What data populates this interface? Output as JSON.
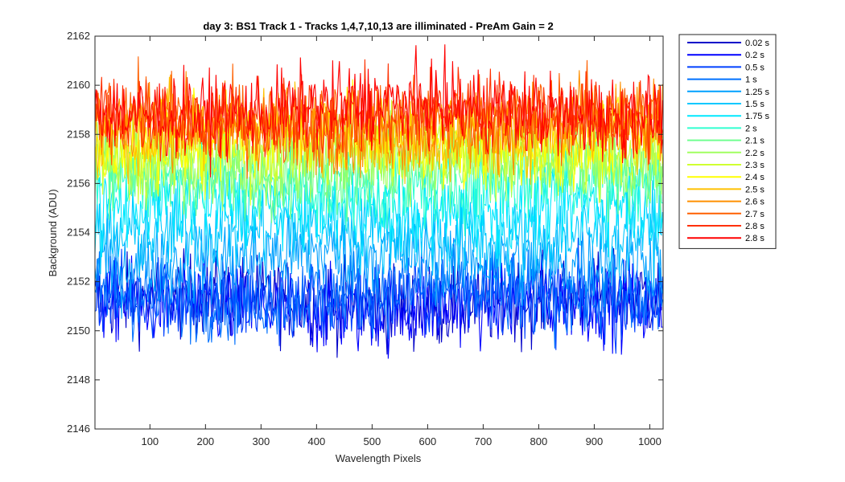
{
  "chart_data": {
    "type": "line",
    "title": "day 3: BS1  Track 1 - Tracks 1,4,7,10,13 are illiminated - PreAm Gain = 2",
    "xlabel": "Wavelength Pixels",
    "ylabel": "Background (ADU)",
    "xlim": [
      1,
      1024
    ],
    "ylim": [
      2146,
      2162
    ],
    "xticks": [
      100,
      200,
      300,
      400,
      500,
      600,
      700,
      800,
      900,
      1000
    ],
    "yticks": [
      2146,
      2148,
      2150,
      2152,
      2154,
      2156,
      2158,
      2160,
      2162
    ],
    "grid": false,
    "legend_position": "outside-right",
    "series": [
      {
        "name": "0.02 s",
        "color": "#0000c8",
        "mean": 2151.2
      },
      {
        "name": "0.2 s",
        "color": "#0000ff",
        "mean": 2151.0
      },
      {
        "name": "0.5 s",
        "color": "#0040ff",
        "mean": 2151.3
      },
      {
        "name": "1 s",
        "color": "#0070ff",
        "mean": 2151.5
      },
      {
        "name": "1.25 s",
        "color": "#00a0ff",
        "mean": 2153.0
      },
      {
        "name": "1.5 s",
        "color": "#00c8ff",
        "mean": 2154.0
      },
      {
        "name": "1.75 s",
        "color": "#00e8ff",
        "mean": 2155.0
      },
      {
        "name": "2 s",
        "color": "#30ffd0",
        "mean": 2156.0
      },
      {
        "name": "2.1 s",
        "color": "#70ff90",
        "mean": 2156.6
      },
      {
        "name": "2.2 s",
        "color": "#a0ff60",
        "mean": 2157.0
      },
      {
        "name": "2.3 s",
        "color": "#d0ff30",
        "mean": 2157.4
      },
      {
        "name": "2.4 s",
        "color": "#ffff00",
        "mean": 2157.8
      },
      {
        "name": "2.5 s",
        "color": "#ffc000",
        "mean": 2158.1
      },
      {
        "name": "2.6 s",
        "color": "#ff9000",
        "mean": 2158.3
      },
      {
        "name": "2.7 s",
        "color": "#ff6000",
        "mean": 2158.6
      },
      {
        "name": "2.8 s",
        "color": "#ff3000",
        "mean": 2158.8
      },
      {
        "name": "2.8 s",
        "color": "#ff0000",
        "mean": 2159.0
      }
    ]
  }
}
